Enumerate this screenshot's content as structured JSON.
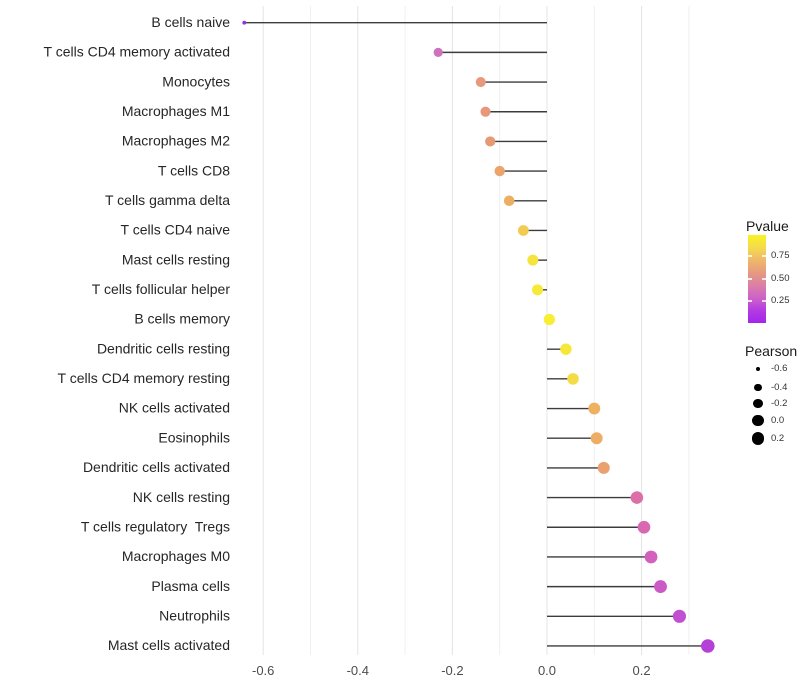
{
  "chart_data": {
    "type": "lollipop",
    "title": "",
    "xlabel": "",
    "ylabel": "",
    "xlim": [
      -0.655,
      0.4
    ],
    "grid": true,
    "x_tick_labels": [
      "-0.6",
      "-0.4",
      "-0.2",
      "0.0",
      "0.2"
    ],
    "x_tick_values": [
      -0.6,
      -0.4,
      -0.2,
      0.0,
      0.2
    ],
    "x_minor_grid_values": [
      -0.5,
      -0.3,
      -0.1,
      0.1,
      0.3
    ],
    "points": [
      {
        "label": "B cells naive",
        "pearson": -0.64,
        "pvalue": 0.05,
        "color": "#9430DC"
      },
      {
        "label": "T cells CD4 memory activated",
        "pearson": -0.23,
        "pvalue": 0.3,
        "color": "#CE72BE"
      },
      {
        "label": "Monocytes",
        "pearson": -0.14,
        "pvalue": 0.52,
        "color": "#E8997C"
      },
      {
        "label": "Macrophages M1",
        "pearson": -0.13,
        "pvalue": 0.54,
        "color": "#E8987A"
      },
      {
        "label": "Macrophages M2",
        "pearson": -0.12,
        "pvalue": 0.58,
        "color": "#E59A74"
      },
      {
        "label": "T cells CD8",
        "pearson": -0.1,
        "pvalue": 0.63,
        "color": "#EAA46C"
      },
      {
        "label": "T cells gamma delta",
        "pearson": -0.08,
        "pvalue": 0.68,
        "color": "#ECAE62"
      },
      {
        "label": "T cells CD4 naive",
        "pearson": -0.05,
        "pvalue": 0.82,
        "color": "#F2CB52"
      },
      {
        "label": "Mast cells resting",
        "pearson": -0.03,
        "pvalue": 0.89,
        "color": "#F6E33C"
      },
      {
        "label": "T cells follicular helper",
        "pearson": -0.02,
        "pvalue": 0.92,
        "color": "#F7E93A"
      },
      {
        "label": "B cells memory",
        "pearson": 0.005,
        "pvalue": 0.97,
        "color": "#F8EE33"
      },
      {
        "label": "Dendritic cells resting",
        "pearson": 0.04,
        "pvalue": 0.88,
        "color": "#F7E73A"
      },
      {
        "label": "T cells CD4 memory resting",
        "pearson": 0.055,
        "pvalue": 0.83,
        "color": "#F4DC46"
      },
      {
        "label": "NK cells activated",
        "pearson": 0.1,
        "pvalue": 0.66,
        "color": "#EEB160"
      },
      {
        "label": "Eosinophils",
        "pearson": 0.105,
        "pvalue": 0.65,
        "color": "#EDAD64"
      },
      {
        "label": "Dendritic cells activated",
        "pearson": 0.12,
        "pvalue": 0.6,
        "color": "#EBA070"
      },
      {
        "label": "NK cells resting",
        "pearson": 0.19,
        "pvalue": 0.38,
        "color": "#DC6FA8"
      },
      {
        "label": "T cells regulatory  Tregs",
        "pearson": 0.205,
        "pvalue": 0.35,
        "color": "#D868B2"
      },
      {
        "label": "Macrophages M0",
        "pearson": 0.22,
        "pvalue": 0.31,
        "color": "#D460BE"
      },
      {
        "label": "Plasma cells",
        "pearson": 0.24,
        "pvalue": 0.27,
        "color": "#CC5AC6"
      },
      {
        "label": "Neutrophils",
        "pearson": 0.28,
        "pvalue": 0.2,
        "color": "#C24FD2"
      },
      {
        "label": "Mast cells activated",
        "pearson": 0.34,
        "pvalue": 0.12,
        "color": "#B440D8"
      }
    ],
    "color_legend": {
      "title": "Pvalue",
      "tick_labels": [
        "0.75",
        "0.50",
        "0.25"
      ],
      "tick_values": [
        0.75,
        0.5,
        0.25
      ],
      "range": [
        0.01,
        0.98
      ],
      "gradient_top_to_bottom": [
        "#F9F321",
        "#F5DA4E",
        "#EFB869",
        "#E69A80",
        "#DC7FA6",
        "#CE62C8",
        "#B33BE3",
        "#A326EB"
      ]
    },
    "size_legend": {
      "title": "Pearson",
      "entry_labels": [
        "-0.6",
        "-0.4",
        "-0.2",
        "0.0",
        "0.2"
      ],
      "entry_values": [
        -0.6,
        -0.4,
        -0.2,
        0.0,
        0.2
      ],
      "dot_color": "#000000"
    },
    "colors": {
      "segment": "#3C3C3C",
      "grid_major": "#E4E4E4",
      "grid_minor": "#F0F0F0",
      "axis_text": "#4D4D4D",
      "category_text": "#262626",
      "background": "#FFFFFF"
    }
  }
}
